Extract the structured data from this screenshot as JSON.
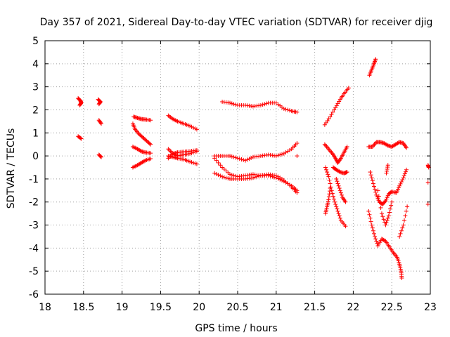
{
  "chart_data": {
    "type": "scatter",
    "title": "Day 357 of 2021, Sidereal Day-to-day VTEC variation (SDTVAR) for receiver djig",
    "xlabel": "GPS time / hours",
    "ylabel": "SDTVAR / TECUs",
    "xlim": [
      18,
      23
    ],
    "ylim": [
      -6,
      5
    ],
    "xticks": [
      "18",
      "18.5",
      "19",
      "19.5",
      "20",
      "20.5",
      "21",
      "21.5",
      "22",
      "22.5",
      "23"
    ],
    "yticks": [
      "5",
      "4",
      "3",
      "2",
      "1",
      "0",
      "-1",
      "-2",
      "-3",
      "-4",
      "-5",
      "-6"
    ],
    "grid": true,
    "marker": "+",
    "color": "#ff0000",
    "series": [
      {
        "name": "SDTVAR",
        "segments": [
          [
            [
              18.43,
              2.5
            ],
            [
              18.46,
              2.4
            ],
            [
              18.47,
              2.3
            ],
            [
              18.45,
              2.2
            ]
          ],
          [
            [
              18.43,
              0.85
            ],
            [
              18.47,
              0.75
            ]
          ],
          [
            [
              18.69,
              2.45
            ],
            [
              18.72,
              2.35
            ],
            [
              18.7,
              2.25
            ]
          ],
          [
            [
              18.7,
              1.55
            ],
            [
              18.73,
              1.4
            ]
          ],
          [
            [
              18.7,
              0.05
            ],
            [
              18.73,
              -0.05
            ]
          ],
          [
            [
              19.15,
              1.7
            ],
            [
              19.2,
              1.65
            ],
            [
              19.25,
              1.6
            ],
            [
              19.3,
              1.58
            ],
            [
              19.37,
              1.55
            ]
          ],
          [
            [
              19.14,
              1.4
            ],
            [
              19.17,
              1.15
            ],
            [
              19.22,
              0.95
            ],
            [
              19.27,
              0.8
            ],
            [
              19.32,
              0.65
            ],
            [
              19.37,
              0.5
            ]
          ],
          [
            [
              19.14,
              0.4
            ],
            [
              19.2,
              0.3
            ],
            [
              19.25,
              0.2
            ],
            [
              19.3,
              0.15
            ],
            [
              19.37,
              0.12
            ]
          ],
          [
            [
              19.14,
              -0.5
            ],
            [
              19.2,
              -0.4
            ],
            [
              19.25,
              -0.3
            ],
            [
              19.3,
              -0.2
            ],
            [
              19.37,
              -0.12
            ]
          ],
          [
            [
              19.6,
              1.75
            ],
            [
              19.66,
              1.6
            ],
            [
              19.72,
              1.5
            ],
            [
              19.8,
              1.4
            ],
            [
              19.88,
              1.3
            ],
            [
              19.97,
              1.15
            ]
          ],
          [
            [
              19.6,
              0.3
            ],
            [
              19.66,
              0.1
            ],
            [
              19.72,
              0.0
            ],
            [
              19.8,
              0.05
            ],
            [
              19.88,
              0.1
            ],
            [
              19.97,
              0.2
            ]
          ],
          [
            [
              19.6,
              0.0
            ],
            [
              19.66,
              -0.05
            ],
            [
              19.72,
              -0.1
            ],
            [
              19.8,
              -0.15
            ],
            [
              19.88,
              -0.25
            ],
            [
              19.97,
              -0.35
            ]
          ],
          [
            [
              19.6,
              -0.1
            ],
            [
              19.66,
              0.1
            ],
            [
              19.72,
              0.15
            ],
            [
              19.8,
              0.18
            ],
            [
              19.88,
              0.2
            ],
            [
              19.97,
              0.25
            ]
          ],
          [
            [
              20.3,
              2.35
            ],
            [
              20.4,
              2.3
            ],
            [
              20.5,
              2.2
            ],
            [
              20.6,
              2.2
            ],
            [
              20.7,
              2.15
            ],
            [
              20.8,
              2.2
            ],
            [
              20.9,
              2.3
            ],
            [
              21.0,
              2.3
            ],
            [
              21.1,
              2.05
            ],
            [
              21.2,
              1.95
            ],
            [
              21.27,
              1.9
            ]
          ],
          [
            [
              20.2,
              0.0
            ],
            [
              20.3,
              0.0
            ],
            [
              20.4,
              0.0
            ],
            [
              20.5,
              -0.1
            ],
            [
              20.6,
              -0.2
            ],
            [
              20.7,
              -0.05
            ],
            [
              20.8,
              0.0
            ],
            [
              20.9,
              0.05
            ],
            [
              21.0,
              0.0
            ],
            [
              21.1,
              0.1
            ],
            [
              21.2,
              0.3
            ],
            [
              21.27,
              0.55
            ]
          ],
          [
            [
              20.2,
              -0.1
            ],
            [
              20.3,
              -0.5
            ],
            [
              20.4,
              -0.8
            ],
            [
              20.5,
              -0.9
            ],
            [
              20.6,
              -0.85
            ],
            [
              20.7,
              -0.8
            ],
            [
              20.8,
              -0.85
            ],
            [
              20.9,
              -0.85
            ],
            [
              21.0,
              -0.95
            ],
            [
              21.1,
              -1.1
            ],
            [
              21.2,
              -1.3
            ],
            [
              21.27,
              -1.5
            ]
          ],
          [
            [
              20.2,
              -0.75
            ],
            [
              20.3,
              -0.9
            ],
            [
              20.4,
              -1.0
            ],
            [
              20.5,
              -1.0
            ],
            [
              20.6,
              -1.0
            ],
            [
              20.7,
              -0.95
            ],
            [
              20.8,
              -0.85
            ],
            [
              20.9,
              -0.8
            ],
            [
              21.0,
              -0.85
            ],
            [
              21.1,
              -1.05
            ],
            [
              21.2,
              -1.35
            ],
            [
              21.27,
              -1.6
            ]
          ],
          [
            [
              21.27,
              0.0
            ]
          ],
          [
            [
              21.63,
              1.35
            ],
            [
              21.7,
              1.7
            ],
            [
              21.77,
              2.1
            ],
            [
              21.83,
              2.45
            ],
            [
              21.88,
              2.7
            ],
            [
              21.94,
              2.95
            ]
          ],
          [
            [
              21.63,
              0.5
            ],
            [
              21.68,
              0.3
            ],
            [
              21.73,
              0.1
            ],
            [
              21.77,
              -0.1
            ],
            [
              21.8,
              -0.3
            ],
            [
              21.84,
              -0.1
            ],
            [
              21.88,
              0.15
            ],
            [
              21.92,
              0.4
            ]
          ],
          [
            [
              21.64,
              -0.5
            ],
            [
              21.68,
              -0.9
            ],
            [
              21.72,
              -1.5
            ],
            [
              21.76,
              -2.0
            ],
            [
              21.8,
              -2.4
            ],
            [
              21.84,
              -2.8
            ],
            [
              21.9,
              -3.05
            ]
          ],
          [
            [
              21.64,
              -2.5
            ],
            [
              21.66,
              -2.2
            ],
            [
              21.68,
              -1.9
            ],
            [
              21.7,
              -1.4
            ]
          ],
          [
            [
              21.74,
              -0.5
            ],
            [
              21.78,
              -0.6
            ],
            [
              21.83,
              -0.7
            ],
            [
              21.88,
              -0.75
            ],
            [
              21.92,
              -0.7
            ]
          ],
          [
            [
              21.78,
              -1.0
            ],
            [
              21.82,
              -1.4
            ],
            [
              21.86,
              -1.8
            ],
            [
              21.9,
              -2.0
            ]
          ],
          [
            [
              22.21,
              3.5
            ],
            [
              22.24,
              3.75
            ],
            [
              22.27,
              4.0
            ],
            [
              22.29,
              4.2
            ]
          ],
          [
            [
              22.2,
              0.4
            ],
            [
              22.25,
              0.4
            ],
            [
              22.3,
              0.6
            ],
            [
              22.35,
              0.6
            ],
            [
              22.4,
              0.55
            ],
            [
              22.45,
              0.45
            ],
            [
              22.5,
              0.4
            ],
            [
              22.55,
              0.5
            ],
            [
              22.6,
              0.6
            ],
            [
              22.65,
              0.55
            ],
            [
              22.69,
              0.35
            ]
          ],
          [
            [
              22.2,
              -2.4
            ],
            [
              22.24,
              -3.0
            ],
            [
              22.28,
              -3.5
            ],
            [
              22.32,
              -3.9
            ],
            [
              22.37,
              -3.6
            ],
            [
              22.42,
              -3.7
            ],
            [
              22.47,
              -3.95
            ],
            [
              22.52,
              -4.2
            ],
            [
              22.57,
              -4.4
            ],
            [
              22.6,
              -4.7
            ],
            [
              22.62,
              -5.0
            ],
            [
              22.63,
              -5.3
            ]
          ],
          [
            [
              22.22,
              -0.7
            ],
            [
              22.26,
              -1.2
            ],
            [
              22.3,
              -1.7
            ],
            [
              22.34,
              -2.0
            ],
            [
              22.38,
              -2.1
            ],
            [
              22.42,
              -1.95
            ],
            [
              22.46,
              -1.65
            ],
            [
              22.5,
              -1.55
            ],
            [
              22.56,
              -1.6
            ],
            [
              22.6,
              -1.3
            ],
            [
              22.65,
              -0.95
            ],
            [
              22.69,
              -0.6
            ]
          ],
          [
            [
              22.32,
              -1.5
            ],
            [
              22.37,
              -2.5
            ],
            [
              22.42,
              -3.0
            ],
            [
              22.46,
              -2.6
            ],
            [
              22.5,
              -2.0
            ]
          ],
          [
            [
              22.6,
              -3.5
            ],
            [
              22.65,
              -3.0
            ],
            [
              22.7,
              -2.2
            ]
          ],
          [
            [
              22.43,
              -0.75
            ],
            [
              22.45,
              -0.4
            ]
          ],
          [
            [
              22.97,
              -0.4
            ],
            [
              22.98,
              -0.5
            ]
          ],
          [
            [
              22.97,
              -1.15
            ]
          ],
          [
            [
              22.97,
              -2.1
            ]
          ]
        ]
      }
    ]
  }
}
